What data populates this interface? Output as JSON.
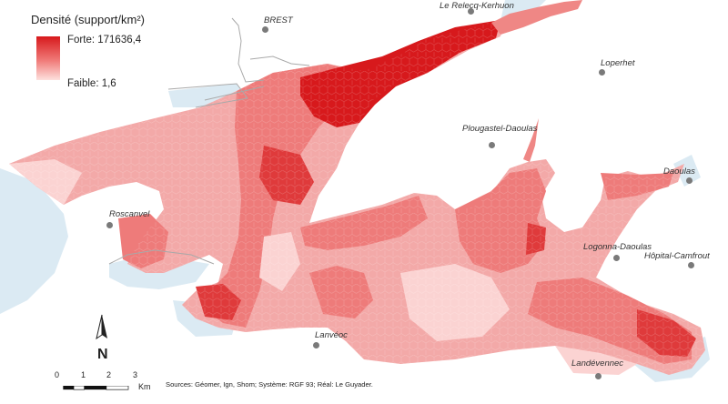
{
  "legend": {
    "title": "Densité (support/km²)",
    "high_label": "Forte: 171636,4",
    "low_label": "Faible: 1,6",
    "high_color": "#d7191c",
    "low_color": "#fde0dd"
  },
  "places": [
    {
      "key": "brest",
      "name": "BREST"
    },
    {
      "key": "relecq",
      "name": "Le Relecq-Kerhuon"
    },
    {
      "key": "loperhet",
      "name": "Loperhet"
    },
    {
      "key": "plougastel",
      "name": "Plougastel-Daoulas"
    },
    {
      "key": "daoulas",
      "name": "Daoulas"
    },
    {
      "key": "roscanvel",
      "name": "Roscanvel"
    },
    {
      "key": "logonna",
      "name": "Logonna-Daoulas"
    },
    {
      "key": "hopital",
      "name": "Hôpital-Camfrout"
    },
    {
      "key": "lanveoc",
      "name": "Lanvéoc"
    },
    {
      "key": "landevennec",
      "name": "Landévennec"
    }
  ],
  "scale": {
    "ticks": [
      "0",
      "1",
      "2",
      "3"
    ],
    "unit": "Km"
  },
  "north_label": "N",
  "credits": "Sources: Géomer, Ign, Shom; Système: RGF 93; Réal: Le Guyader.",
  "colors": {
    "sea": "#dbeaf3",
    "land": "#ffffff",
    "border": "#a9a9a9"
  }
}
